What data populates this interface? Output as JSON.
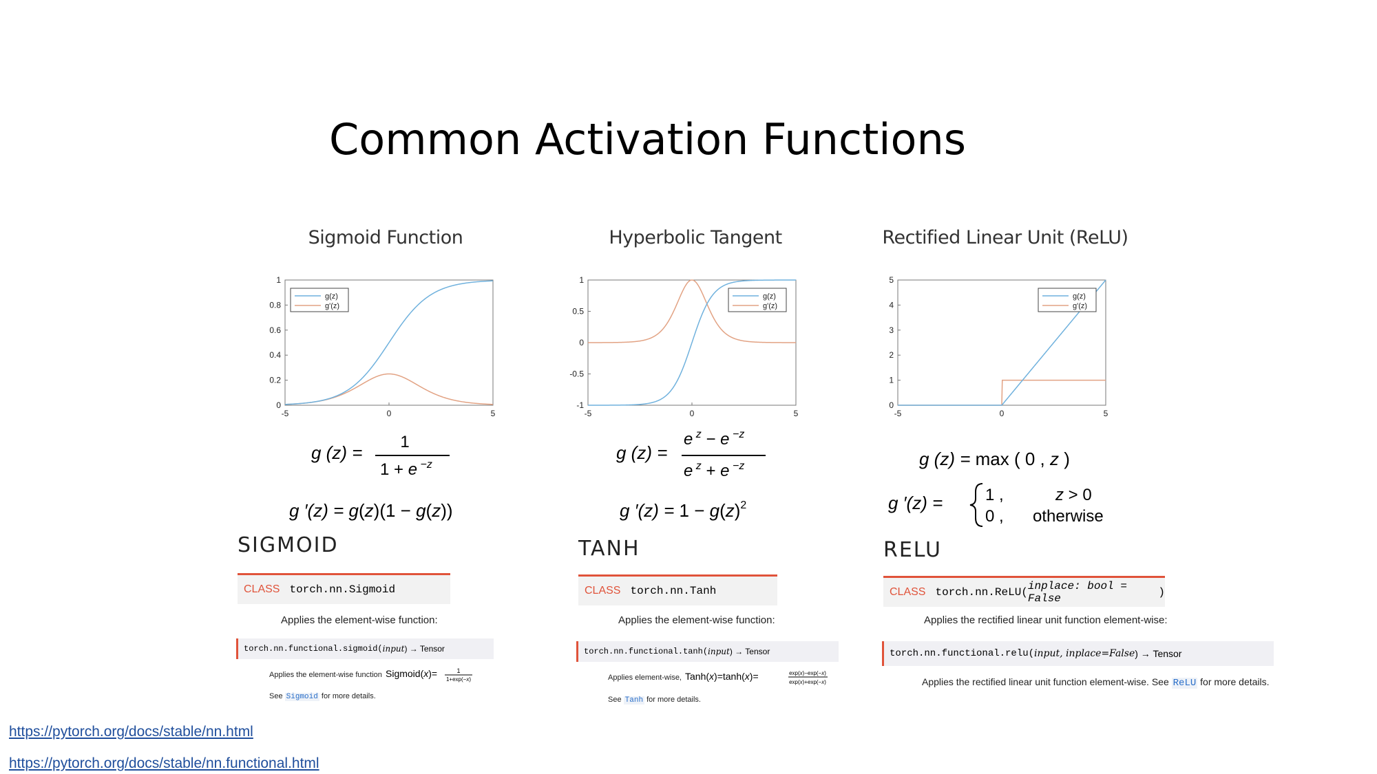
{
  "title": "Common Activation Functions",
  "plots": [
    {
      "title": "Sigmoid Function",
      "kind": "sigmoid",
      "legend_pos": "top-left",
      "y_ticks": [
        "1",
        "0.8",
        "0.6",
        "0.4",
        "0.2",
        "0"
      ],
      "x_ticks": [
        "-5",
        "0",
        "5"
      ],
      "legend": [
        "g(z)",
        "g'(z)"
      ]
    },
    {
      "title": "Hyperbolic Tangent",
      "kind": "tanh",
      "legend_pos": "top-right",
      "y_ticks": [
        "1",
        "0.5",
        "0",
        "-0.5",
        "-1"
      ],
      "x_ticks": [
        "-5",
        "0",
        "5"
      ],
      "legend": [
        "g(z)",
        "g'(z)"
      ]
    },
    {
      "title": "Rectified Linear Unit (ReLU)",
      "kind": "relu",
      "legend_pos": "top-right",
      "y_ticks": [
        "5",
        "4",
        "3",
        "2",
        "1",
        "0"
      ],
      "x_ticks": [
        "-5",
        "0",
        "5"
      ],
      "legend": [
        "g(z)",
        "g'(z)"
      ]
    }
  ],
  "colors": {
    "gz": "#6fb1dd",
    "gpz": "#e2a283",
    "accent": "#e0533a",
    "link": "#1f4e9c"
  },
  "sections": [
    {
      "name": "SIGMOID",
      "class_kw": "CLASS",
      "class_sig": "torch.nn.Sigmoid",
      "applies": "Applies the element-wise function:",
      "fn_sig": "torch.nn.functional.sigmoid(",
      "fn_arg": "input",
      "fn_ret": ") → Tensor",
      "fn_desc": "Applies the element-wise function",
      "see": "See",
      "see_code": "Sigmoid",
      "see_tail": "for more details."
    },
    {
      "name": "TANH",
      "class_kw": "CLASS",
      "class_sig": "torch.nn.Tanh",
      "applies": "Applies the element-wise function:",
      "fn_sig": "torch.nn.functional.tanh(",
      "fn_arg": "input",
      "fn_ret": ") → Tensor",
      "fn_desc": "Applies element-wise,",
      "see": "See",
      "see_code": "Tanh",
      "see_tail": "for more details."
    },
    {
      "name": "RELU",
      "class_kw": "CLASS",
      "class_sig": "torch.nn.ReLU(",
      "class_arg": "inplace: bool = False",
      "class_close": ")",
      "applies": "Applies the rectified linear unit function element-wise:",
      "fn_sig": "torch.nn.functional.relu(",
      "fn_arg": "input, inplace=False",
      "fn_ret": ") → Tensor",
      "fn_desc": "Applies the rectified linear unit function element-wise. See",
      "see_code": "ReLU",
      "see_tail": "for more details."
    }
  ],
  "links": [
    "https://pytorch.org/docs/stable/nn.html",
    "https://pytorch.org/docs/stable/nn.functional.html"
  ]
}
